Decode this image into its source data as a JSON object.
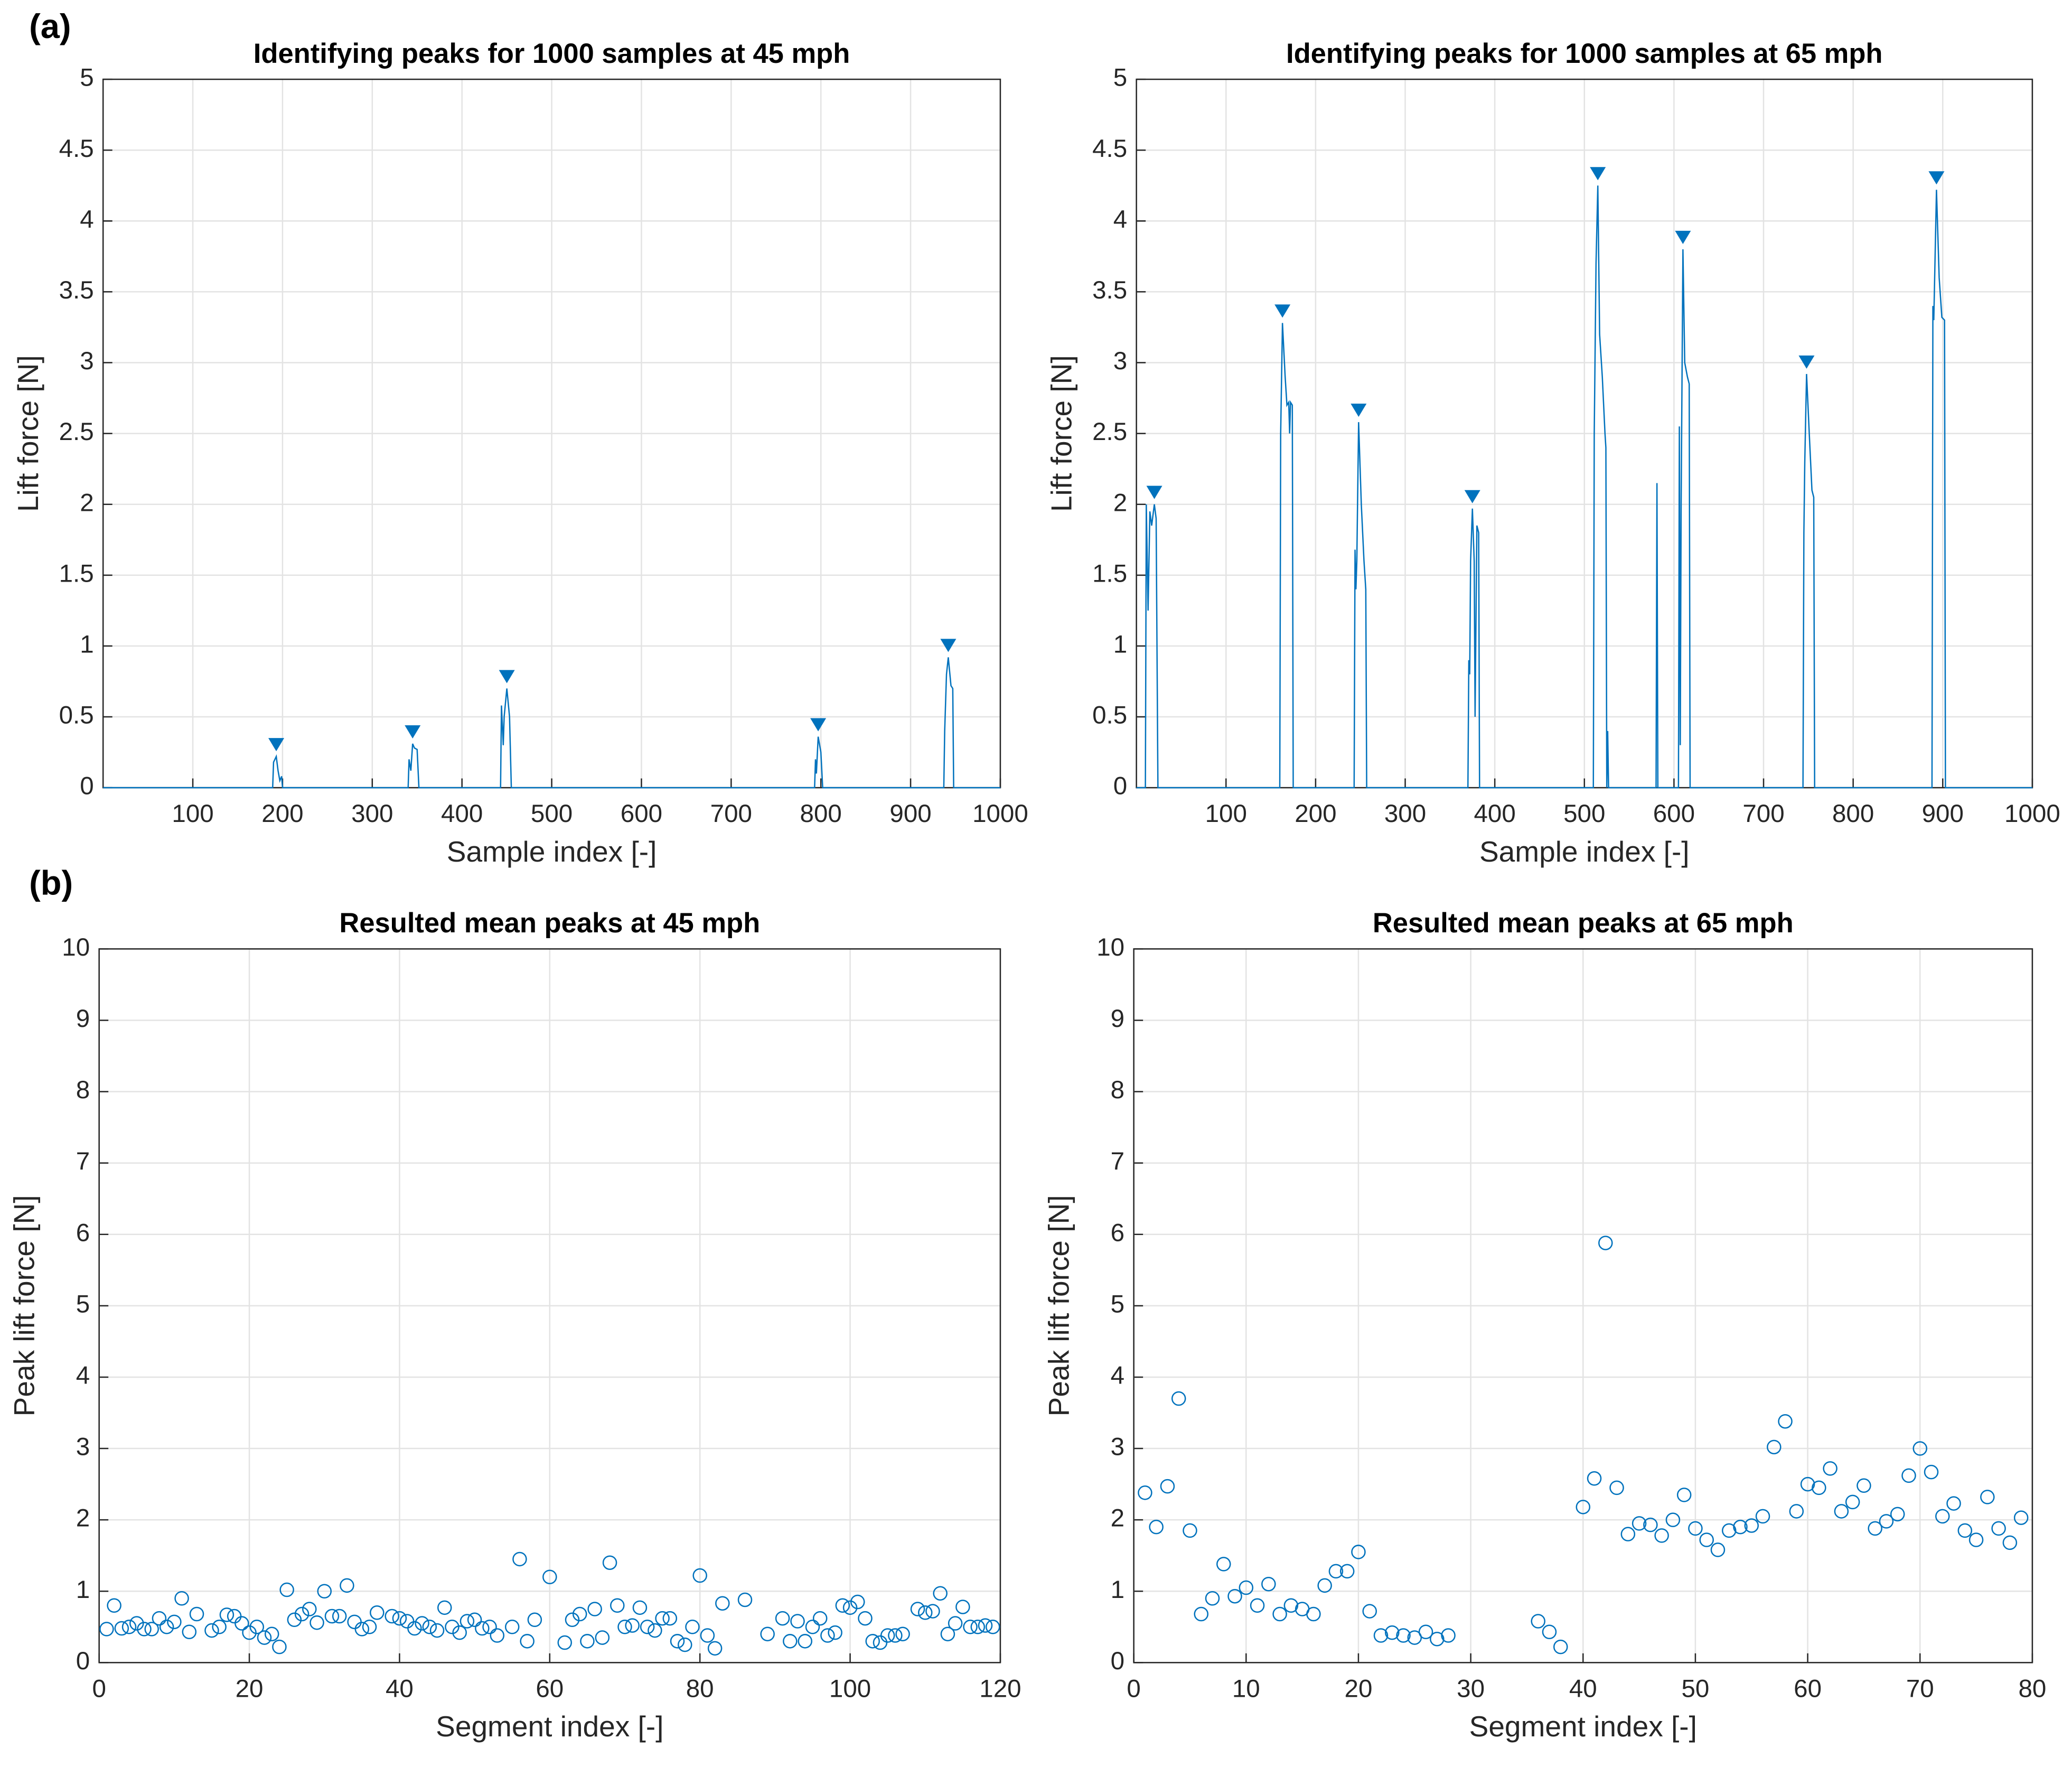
{
  "panel_labels": [
    "(a)",
    "(b)"
  ],
  "chart_data": [
    {
      "type": "line",
      "title": "Identifying peaks for 1000 samples at 45 mph",
      "xlabel": "Sample index [-]",
      "ylabel": "Lift force [N]",
      "color": "#0072BD",
      "grid": true,
      "xlim": [
        0,
        1000
      ],
      "xticks": [
        100,
        200,
        300,
        400,
        500,
        600,
        700,
        800,
        900,
        1000
      ],
      "ylim": [
        0,
        5
      ],
      "yticks": [
        0,
        0.5,
        1,
        1.5,
        2,
        2.5,
        3,
        3.5,
        4,
        4.5,
        5
      ],
      "x": [
        0,
        189,
        190,
        193,
        195,
        197,
        199,
        200,
        340,
        341,
        343,
        345,
        347,
        350,
        352,
        443,
        444,
        446,
        447,
        450,
        453,
        455,
        793,
        794,
        795,
        797,
        800,
        802,
        937,
        938,
        940,
        942,
        945,
        947,
        948,
        1000
      ],
      "values": [
        0,
        0,
        0.18,
        0.22,
        0.12,
        0.05,
        0.08,
        0,
        0,
        0.2,
        0.12,
        0.31,
        0.28,
        0.27,
        0,
        0,
        0.58,
        0.3,
        0.5,
        0.7,
        0.5,
        0,
        0,
        0.2,
        0.1,
        0.36,
        0.25,
        0,
        0,
        0.4,
        0.8,
        0.92,
        0.72,
        0.7,
        0,
        0
      ],
      "peaks": {
        "x": [
          193,
          345,
          450,
          797,
          942
        ],
        "values": [
          0.22,
          0.31,
          0.7,
          0.36,
          0.92
        ]
      }
    },
    {
      "type": "line",
      "title": "Identifying peaks for 1000 samples at 65 mph",
      "xlabel": "Sample index [-]",
      "ylabel": "Lift force [N]",
      "color": "#0072BD",
      "grid": true,
      "xlim": [
        0,
        1000
      ],
      "xticks": [
        100,
        200,
        300,
        400,
        500,
        600,
        700,
        800,
        900,
        1000
      ],
      "ylim": [
        0,
        5
      ],
      "yticks": [
        0,
        0.5,
        1,
        1.5,
        2,
        2.5,
        3,
        3.5,
        4,
        4.5,
        5
      ],
      "x": [
        0,
        10,
        11,
        13,
        15,
        17,
        20,
        22,
        24,
        160,
        161,
        163,
        166,
        168,
        170,
        171,
        172,
        174,
        175,
        243,
        244,
        245,
        246,
        248,
        251,
        254,
        256,
        257,
        370,
        371,
        372,
        373,
        375,
        377,
        378,
        380,
        382,
        383,
        510,
        511,
        513,
        515,
        517,
        520,
        523,
        524,
        525,
        526,
        527,
        580,
        581,
        582,
        605,
        606,
        607,
        608,
        610,
        612,
        615,
        617,
        618,
        744,
        745,
        746,
        748,
        751,
        754,
        756,
        757,
        888,
        889,
        890,
        893,
        896,
        899,
        902,
        903,
        1000
      ],
      "values": [
        0,
        0,
        2.0,
        1.25,
        1.95,
        1.85,
        2.0,
        1.9,
        0,
        0,
        2.5,
        3.28,
        2.9,
        2.7,
        2.72,
        2.5,
        2.72,
        2.7,
        0,
        0,
        1.68,
        1.4,
        1.6,
        2.58,
        2.0,
        1.6,
        1.4,
        0,
        0,
        0.9,
        0.8,
        1.6,
        1.97,
        1.6,
        0.5,
        1.85,
        1.8,
        0,
        0,
        2.5,
        3.7,
        4.25,
        3.2,
        2.9,
        2.5,
        2.4,
        0,
        0.4,
        0,
        0,
        2.15,
        0,
        0,
        2.55,
        0.3,
        2.0,
        3.8,
        3.0,
        2.9,
        2.85,
        0,
        0,
        1.8,
        2.3,
        2.92,
        2.5,
        2.1,
        2.05,
        0,
        0,
        3.4,
        3.3,
        4.22,
        3.6,
        3.32,
        3.3,
        0,
        0
      ],
      "peaks": {
        "x": [
          20,
          163,
          248,
          375,
          515,
          610,
          748,
          893
        ],
        "values": [
          2.0,
          3.28,
          2.58,
          1.97,
          4.25,
          3.8,
          2.92,
          4.22
        ]
      }
    },
    {
      "type": "scatter",
      "title": "Resulted mean peaks at 45 mph",
      "xlabel": "Segment index [-]",
      "ylabel": "Peak lift force [N]",
      "color": "#0072BD",
      "grid": true,
      "xlim": [
        0,
        120
      ],
      "xticks": [
        0,
        20,
        40,
        60,
        80,
        100,
        120
      ],
      "ylim": [
        0,
        10
      ],
      "yticks": [
        0,
        1,
        2,
        3,
        4,
        5,
        6,
        7,
        8,
        9,
        10
      ],
      "x": [
        1,
        2,
        3,
        4,
        5,
        6,
        7,
        8,
        9,
        10,
        11,
        12,
        13,
        14,
        15,
        16,
        17,
        18,
        19,
        20,
        21,
        22,
        23,
        24,
        25,
        26,
        27,
        28,
        29,
        30,
        31,
        32,
        33,
        34,
        35,
        36,
        37,
        38,
        39,
        40,
        41,
        42,
        43,
        44,
        45,
        46,
        47,
        48,
        49,
        50,
        51,
        52,
        53,
        54,
        55,
        56,
        57,
        58,
        59,
        60,
        61,
        62,
        63,
        64,
        65,
        66,
        67,
        68,
        69,
        70,
        71,
        72,
        73,
        74,
        75,
        76,
        77,
        78,
        79,
        80,
        81,
        82,
        83,
        84,
        85,
        86,
        87,
        88,
        89,
        90,
        91,
        92,
        93,
        94,
        95,
        96,
        97,
        98,
        99,
        100,
        101,
        102,
        103,
        104,
        105,
        106,
        107,
        108,
        109,
        110,
        111,
        112,
        113,
        114,
        115,
        116,
        117,
        118,
        119
      ],
      "values": [
        0.47,
        0.8,
        0.48,
        0.5,
        0.55,
        0.47,
        0.47,
        0.62,
        0.5,
        0.57,
        0.9,
        0.43,
        0.68,
        null,
        0.45,
        0.5,
        0.67,
        0.65,
        0.55,
        0.42,
        0.5,
        0.35,
        0.4,
        0.22,
        1.02,
        0.6,
        0.68,
        0.75,
        0.56,
        1.0,
        0.65,
        0.65,
        1.08,
        0.57,
        0.47,
        0.5,
        0.7,
        null,
        0.65,
        0.62,
        0.58,
        0.48,
        0.55,
        0.5,
        0.45,
        0.77,
        0.5,
        0.42,
        0.58,
        0.6,
        0.48,
        0.5,
        0.38,
        null,
        0.5,
        1.45,
        0.3,
        0.6,
        null,
        1.2,
        null,
        0.28,
        0.6,
        0.68,
        0.3,
        0.75,
        0.35,
        1.4,
        0.8,
        0.5,
        0.52,
        0.77,
        0.5,
        0.45,
        0.62,
        0.62,
        0.3,
        0.25,
        0.5,
        1.22,
        0.38,
        0.2,
        0.83,
        null,
        null,
        0.88,
        null,
        null,
        0.4,
        null,
        0.62,
        0.3,
        0.58,
        0.3,
        0.5,
        0.62,
        0.38,
        0.42,
        0.8,
        0.77,
        0.85,
        0.62,
        0.3,
        0.28,
        0.38,
        0.38,
        0.4,
        null,
        0.75,
        0.7,
        0.72,
        0.97,
        0.4,
        0.55,
        0.78,
        0.5,
        0.5,
        0.52,
        0.5
      ]
    },
    {
      "type": "scatter",
      "title": "Resulted mean peaks at 65 mph",
      "xlabel": "Segment index [-]",
      "ylabel": "Peak lift force [N]",
      "color": "#0072BD",
      "grid": true,
      "xlim": [
        0,
        80
      ],
      "xticks": [
        0,
        10,
        20,
        30,
        40,
        50,
        60,
        70,
        80
      ],
      "ylim": [
        0,
        10
      ],
      "yticks": [
        0,
        1,
        2,
        3,
        4,
        5,
        6,
        7,
        8,
        9,
        10
      ],
      "x": [
        1,
        2,
        3,
        4,
        5,
        6,
        7,
        8,
        9,
        10,
        11,
        12,
        13,
        14,
        15,
        16,
        17,
        18,
        19,
        20,
        21,
        22,
        23,
        24,
        25,
        26,
        27,
        28,
        29,
        30,
        31,
        32,
        33,
        34,
        35,
        36,
        37,
        38,
        39,
        40,
        41,
        42,
        43,
        44,
        45,
        46,
        47,
        48,
        49,
        50,
        51,
        52,
        53,
        54,
        55,
        56,
        57,
        58,
        59,
        60,
        61,
        62,
        63,
        64,
        65,
        66,
        67,
        68,
        69,
        70,
        71,
        72,
        73,
        74,
        75,
        76,
        77,
        78,
        79
      ],
      "values": [
        2.38,
        1.9,
        2.47,
        3.7,
        1.85,
        0.68,
        0.9,
        1.38,
        0.93,
        1.05,
        0.8,
        1.1,
        0.68,
        0.8,
        0.75,
        0.68,
        1.08,
        1.28,
        1.28,
        1.55,
        0.72,
        0.38,
        0.42,
        0.38,
        0.35,
        0.43,
        0.33,
        0.38,
        null,
        null,
        null,
        null,
        null,
        null,
        null,
        0.58,
        0.43,
        0.22,
        null,
        2.18,
        2.58,
        5.88,
        2.45,
        1.8,
        1.95,
        1.93,
        1.78,
        2.0,
        2.35,
        1.88,
        1.72,
        1.58,
        1.85,
        1.9,
        1.92,
        2.05,
        3.02,
        3.38,
        2.12,
        2.5,
        2.45,
        2.72,
        2.12,
        2.25,
        2.48,
        1.88,
        1.98,
        2.08,
        2.62,
        3.0,
        2.67,
        2.05,
        2.23,
        1.85,
        1.72,
        2.32,
        1.88,
        1.68,
        2.03
      ]
    }
  ]
}
